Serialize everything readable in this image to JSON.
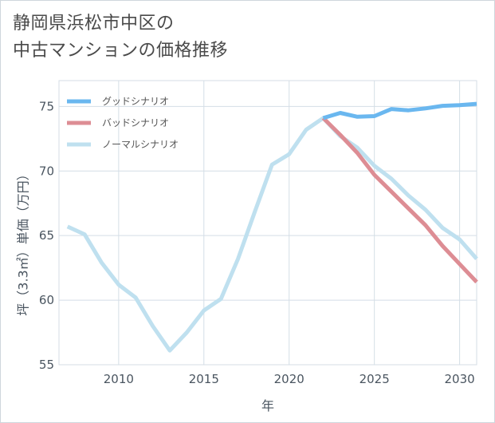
{
  "title": {
    "line1": "静岡県浜松市中区の",
    "line2": "中古マンションの価格推移"
  },
  "chart_data": {
    "type": "line",
    "xlabel": "年",
    "ylabel": "坪（3.3㎡）単価（万円）",
    "xlim": [
      2006.5,
      2031
    ],
    "ylim": [
      55,
      77
    ],
    "xticks": [
      2010,
      2015,
      2020,
      2025,
      2030
    ],
    "yticks": [
      55,
      60,
      65,
      70,
      75
    ],
    "grid": true,
    "legend_position": "top-left",
    "series": [
      {
        "name": "グッドシナリオ",
        "color": "#6ab7ef",
        "points": [
          [
            2022,
            74.1
          ],
          [
            2023,
            74.5
          ],
          [
            2024,
            74.2
          ],
          [
            2025,
            74.25
          ],
          [
            2026,
            74.8
          ],
          [
            2027,
            74.7
          ],
          [
            2028,
            74.85
          ],
          [
            2029,
            75.05
          ],
          [
            2030,
            75.1
          ],
          [
            2031,
            75.2
          ]
        ]
      },
      {
        "name": "バッドシナリオ",
        "color": "#dd8d94",
        "points": [
          [
            2022,
            74.1
          ],
          [
            2023,
            72.8
          ],
          [
            2024,
            71.4
          ],
          [
            2025,
            69.7
          ],
          [
            2026,
            68.4
          ],
          [
            2027,
            67.1
          ],
          [
            2028,
            65.8
          ],
          [
            2029,
            64.2
          ],
          [
            2030,
            62.8
          ],
          [
            2031,
            61.4
          ]
        ]
      },
      {
        "name": "ノーマルシナリオ",
        "color": "#bfe0ef",
        "points": [
          [
            2007,
            65.7
          ],
          [
            2008,
            65.1
          ],
          [
            2009,
            62.9
          ],
          [
            2010,
            61.2
          ],
          [
            2011,
            60.2
          ],
          [
            2012,
            58.0
          ],
          [
            2013,
            56.1
          ],
          [
            2014,
            57.5
          ],
          [
            2015,
            59.2
          ],
          [
            2016,
            60.1
          ],
          [
            2017,
            63.2
          ],
          [
            2018,
            66.9
          ],
          [
            2019,
            70.5
          ],
          [
            2020,
            71.3
          ],
          [
            2021,
            73.2
          ],
          [
            2022,
            74.1
          ],
          [
            2023,
            72.7
          ],
          [
            2024,
            71.8
          ],
          [
            2025,
            70.4
          ],
          [
            2026,
            69.4
          ],
          [
            2027,
            68.1
          ],
          [
            2028,
            67.0
          ],
          [
            2029,
            65.6
          ],
          [
            2030,
            64.7
          ],
          [
            2031,
            63.2
          ]
        ]
      }
    ]
  }
}
